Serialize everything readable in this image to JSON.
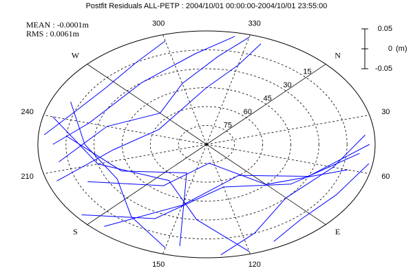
{
  "chart_data": {
    "type": "skyplot",
    "title": "Postfit Residuals ALL-PETP : 2004/10/01 00:00:00-2004/10/01 23:55:00",
    "annotations": [
      "MEAN : -0.0001m",
      "RMS : 0.0061m"
    ],
    "scale": {
      "label": "(m)",
      "ylim": [
        -0.05,
        0.05
      ],
      "yticks": [
        -0.05,
        0,
        0.05
      ]
    },
    "azimuth_ticks": [
      {
        "value": 0,
        "label": "N"
      },
      30,
      60,
      {
        "value": 90,
        "label": "E"
      },
      120,
      150,
      {
        "value": 180,
        "label": "S"
      },
      210,
      240,
      {
        "value": 270,
        "label": "W"
      },
      300,
      330
    ],
    "elevation_ticks": [
      15,
      30,
      45,
      60,
      75
    ],
    "color": "#0000ff",
    "series": [
      {
        "az": [
          330,
          320,
          300,
          270,
          240,
          215
        ],
        "el": [
          2,
          20,
          40,
          55,
          35,
          10
        ]
      },
      {
        "az": [
          335,
          330,
          315,
          250,
          220,
          205
        ],
        "el": [
          5,
          25,
          45,
          62,
          40,
          5
        ]
      },
      {
        "az": [
          325,
          310,
          280,
          240,
          225
        ],
        "el": [
          3,
          18,
          30,
          25,
          8
        ]
      },
      {
        "az": [
          300,
          285,
          265,
          245,
          230
        ],
        "el": [
          5,
          15,
          20,
          15,
          3
        ]
      },
      {
        "az": [
          240,
          210,
          170,
          140,
          120
        ],
        "el": [
          5,
          30,
          55,
          30,
          2
        ]
      },
      {
        "az": [
          230,
          200,
          160,
          145
        ],
        "el": [
          15,
          40,
          65,
          8
        ]
      },
      {
        "az": [
          45,
          70,
          100,
          150,
          175
        ],
        "el": [
          3,
          30,
          60,
          40,
          5
        ]
      },
      {
        "az": [
          50,
          80,
          120,
          160,
          185
        ],
        "el": [
          8,
          35,
          55,
          25,
          3
        ]
      },
      {
        "az": [
          40,
          60,
          90,
          115,
          130
        ],
        "el": [
          5,
          20,
          30,
          15,
          2
        ]
      },
      {
        "az": [
          55,
          75,
          95,
          110
        ],
        "el": [
          2,
          10,
          12,
          5
        ]
      },
      {
        "az": [
          250,
          225,
          195,
          170,
          150
        ],
        "el": [
          10,
          25,
          35,
          20,
          5
        ]
      },
      {
        "az": [
          60,
          90,
          130,
          170,
          200
        ],
        "el": [
          12,
          45,
          75,
          50,
          20
        ]
      }
    ]
  }
}
